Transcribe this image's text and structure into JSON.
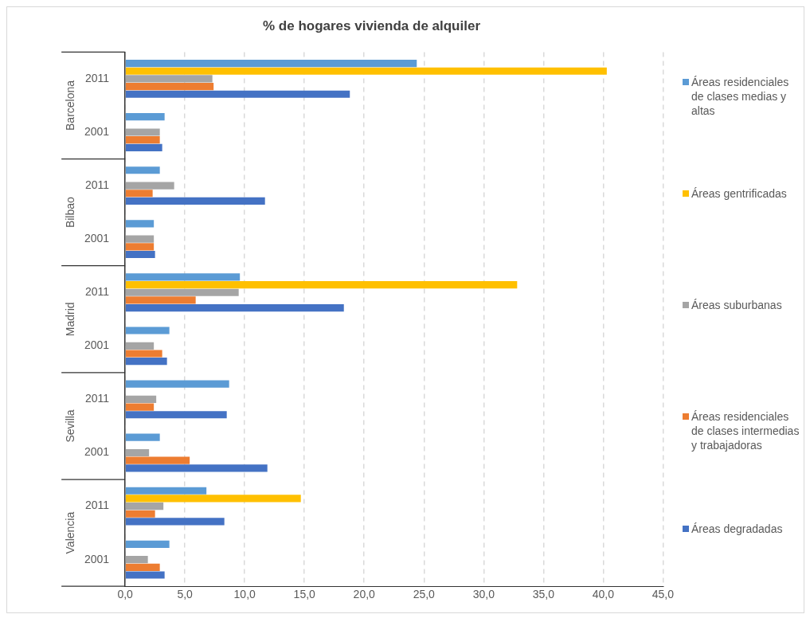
{
  "chart_data": {
    "type": "bar",
    "orientation": "horizontal",
    "title": "% de hogares vivienda de alquiler",
    "categories": [
      "2011",
      "2001",
      "2011",
      "2001",
      "2011",
      "2001",
      "2011",
      "2001",
      "2011",
      "2001"
    ],
    "annotations": [
      "Barcelona",
      "Bilbao",
      "Madrid",
      "Sevilla",
      "Valencia"
    ],
    "series": [
      {
        "name": "Áreas residenciales de clases medias y altas",
        "color": "#5b9bd5",
        "values": [
          24.4,
          3.3,
          2.9,
          2.4,
          9.6,
          3.7,
          8.7,
          2.9,
          6.8,
          3.7
        ]
      },
      {
        "name": "Áreas gentrificadas",
        "color": "#ffc000",
        "values": [
          40.3,
          null,
          null,
          null,
          32.8,
          null,
          null,
          null,
          14.7,
          null
        ]
      },
      {
        "name": "Áreas suburbanas",
        "color": "#a5a5a5",
        "values": [
          7.3,
          2.9,
          4.1,
          2.4,
          9.5,
          2.4,
          2.6,
          2.0,
          3.2,
          1.9
        ]
      },
      {
        "name": "Áreas residenciales de clases intermedias y trabajadoras",
        "color": "#ed7d31",
        "values": [
          7.4,
          2.9,
          2.3,
          2.4,
          5.9,
          3.1,
          2.4,
          5.4,
          2.5,
          2.9
        ]
      },
      {
        "name": "Áreas degradadas",
        "color": "#4472c4",
        "values": [
          18.8,
          3.1,
          11.7,
          2.5,
          18.3,
          3.5,
          8.5,
          11.9,
          8.3,
          3.3
        ]
      }
    ],
    "xlim": [
      0,
      45
    ],
    "xticks": [
      {
        "value": 0,
        "label": "0,0"
      },
      {
        "value": 5,
        "label": "5,0"
      },
      {
        "value": 10,
        "label": "10,0"
      },
      {
        "value": 15,
        "label": "15,0"
      },
      {
        "value": 20,
        "label": "20,0"
      },
      {
        "value": 25,
        "label": "25,0"
      },
      {
        "value": 30,
        "label": "30,0"
      },
      {
        "value": 35,
        "label": "35,0"
      },
      {
        "value": 40,
        "label": "40,0"
      },
      {
        "value": 45,
        "label": "45,0"
      }
    ],
    "grid": "x",
    "legend": "right"
  }
}
